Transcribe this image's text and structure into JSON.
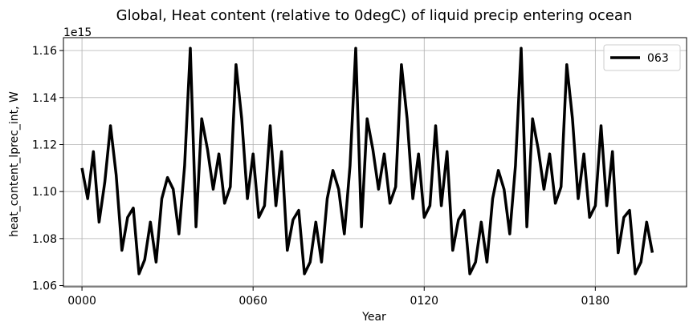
{
  "chart_data": {
    "type": "line",
    "title": "Global, Heat content (relative to 0degC) of liquid precip entering ocean",
    "xlabel": "Year",
    "ylabel": "heat_content_lprec_int, W",
    "offset_text": "1e15",
    "x_tick_values": [
      0,
      60,
      120,
      180
    ],
    "x_tick_labels": [
      "0000",
      "0060",
      "0120",
      "0180"
    ],
    "y_tick_values": [
      1.06,
      1.08,
      1.1,
      1.12,
      1.14,
      1.16
    ],
    "y_tick_labels": [
      "1.06",
      "1.08",
      "1.10",
      "1.12",
      "1.14",
      "1.16"
    ],
    "xlim": [
      -6.5,
      212
    ],
    "ylim": [
      1.0595,
      1.1655
    ],
    "grid": true,
    "legend_position": "top-right",
    "series": [
      {
        "name": "063",
        "color": "#000000",
        "x": [
          0,
          2,
          4,
          6,
          8,
          10,
          12,
          14,
          16,
          18,
          20,
          22,
          24,
          26,
          28,
          30,
          32,
          34,
          36,
          38,
          40,
          42,
          44,
          46,
          48,
          50,
          52,
          54,
          56,
          58,
          60,
          62,
          64,
          66,
          68,
          70,
          72,
          74,
          76,
          78,
          80,
          82,
          84,
          86,
          88,
          90,
          92,
          94,
          96,
          98,
          100,
          102,
          104,
          106,
          108,
          110,
          112,
          114,
          116,
          118,
          120,
          122,
          124,
          126,
          128,
          130,
          132,
          134,
          136,
          138,
          140,
          142,
          144,
          146,
          148,
          150,
          152,
          154,
          156,
          158,
          160,
          162,
          164,
          166,
          168,
          170,
          172,
          174,
          176,
          178,
          180,
          182,
          184,
          186,
          188,
          190,
          192,
          194,
          196,
          198,
          200
        ],
        "y": [
          1.11,
          1.097,
          1.117,
          1.087,
          1.104,
          1.128,
          1.107,
          1.075,
          1.089,
          1.093,
          1.065,
          1.071,
          1.087,
          1.07,
          1.097,
          1.106,
          1.101,
          1.082,
          1.111,
          1.161,
          1.085,
          1.131,
          1.118,
          1.101,
          1.116,
          1.095,
          1.102,
          1.154,
          1.131,
          1.097,
          1.116,
          1.089,
          1.094,
          1.128,
          1.094,
          1.117,
          1.075,
          1.088,
          1.092,
          1.065,
          1.07,
          1.087,
          1.07,
          1.097,
          1.109,
          1.101,
          1.082,
          1.111,
          1.161,
          1.085,
          1.131,
          1.118,
          1.101,
          1.116,
          1.095,
          1.102,
          1.154,
          1.131,
          1.097,
          1.116,
          1.089,
          1.094,
          1.128,
          1.094,
          1.117,
          1.075,
          1.088,
          1.092,
          1.065,
          1.07,
          1.087,
          1.07,
          1.097,
          1.109,
          1.101,
          1.082,
          1.111,
          1.161,
          1.085,
          1.131,
          1.118,
          1.101,
          1.116,
          1.095,
          1.102,
          1.154,
          1.131,
          1.097,
          1.116,
          1.089,
          1.094,
          1.128,
          1.094,
          1.117,
          1.074,
          1.089,
          1.092,
          1.065,
          1.07,
          1.087,
          1.074
        ]
      }
    ]
  }
}
